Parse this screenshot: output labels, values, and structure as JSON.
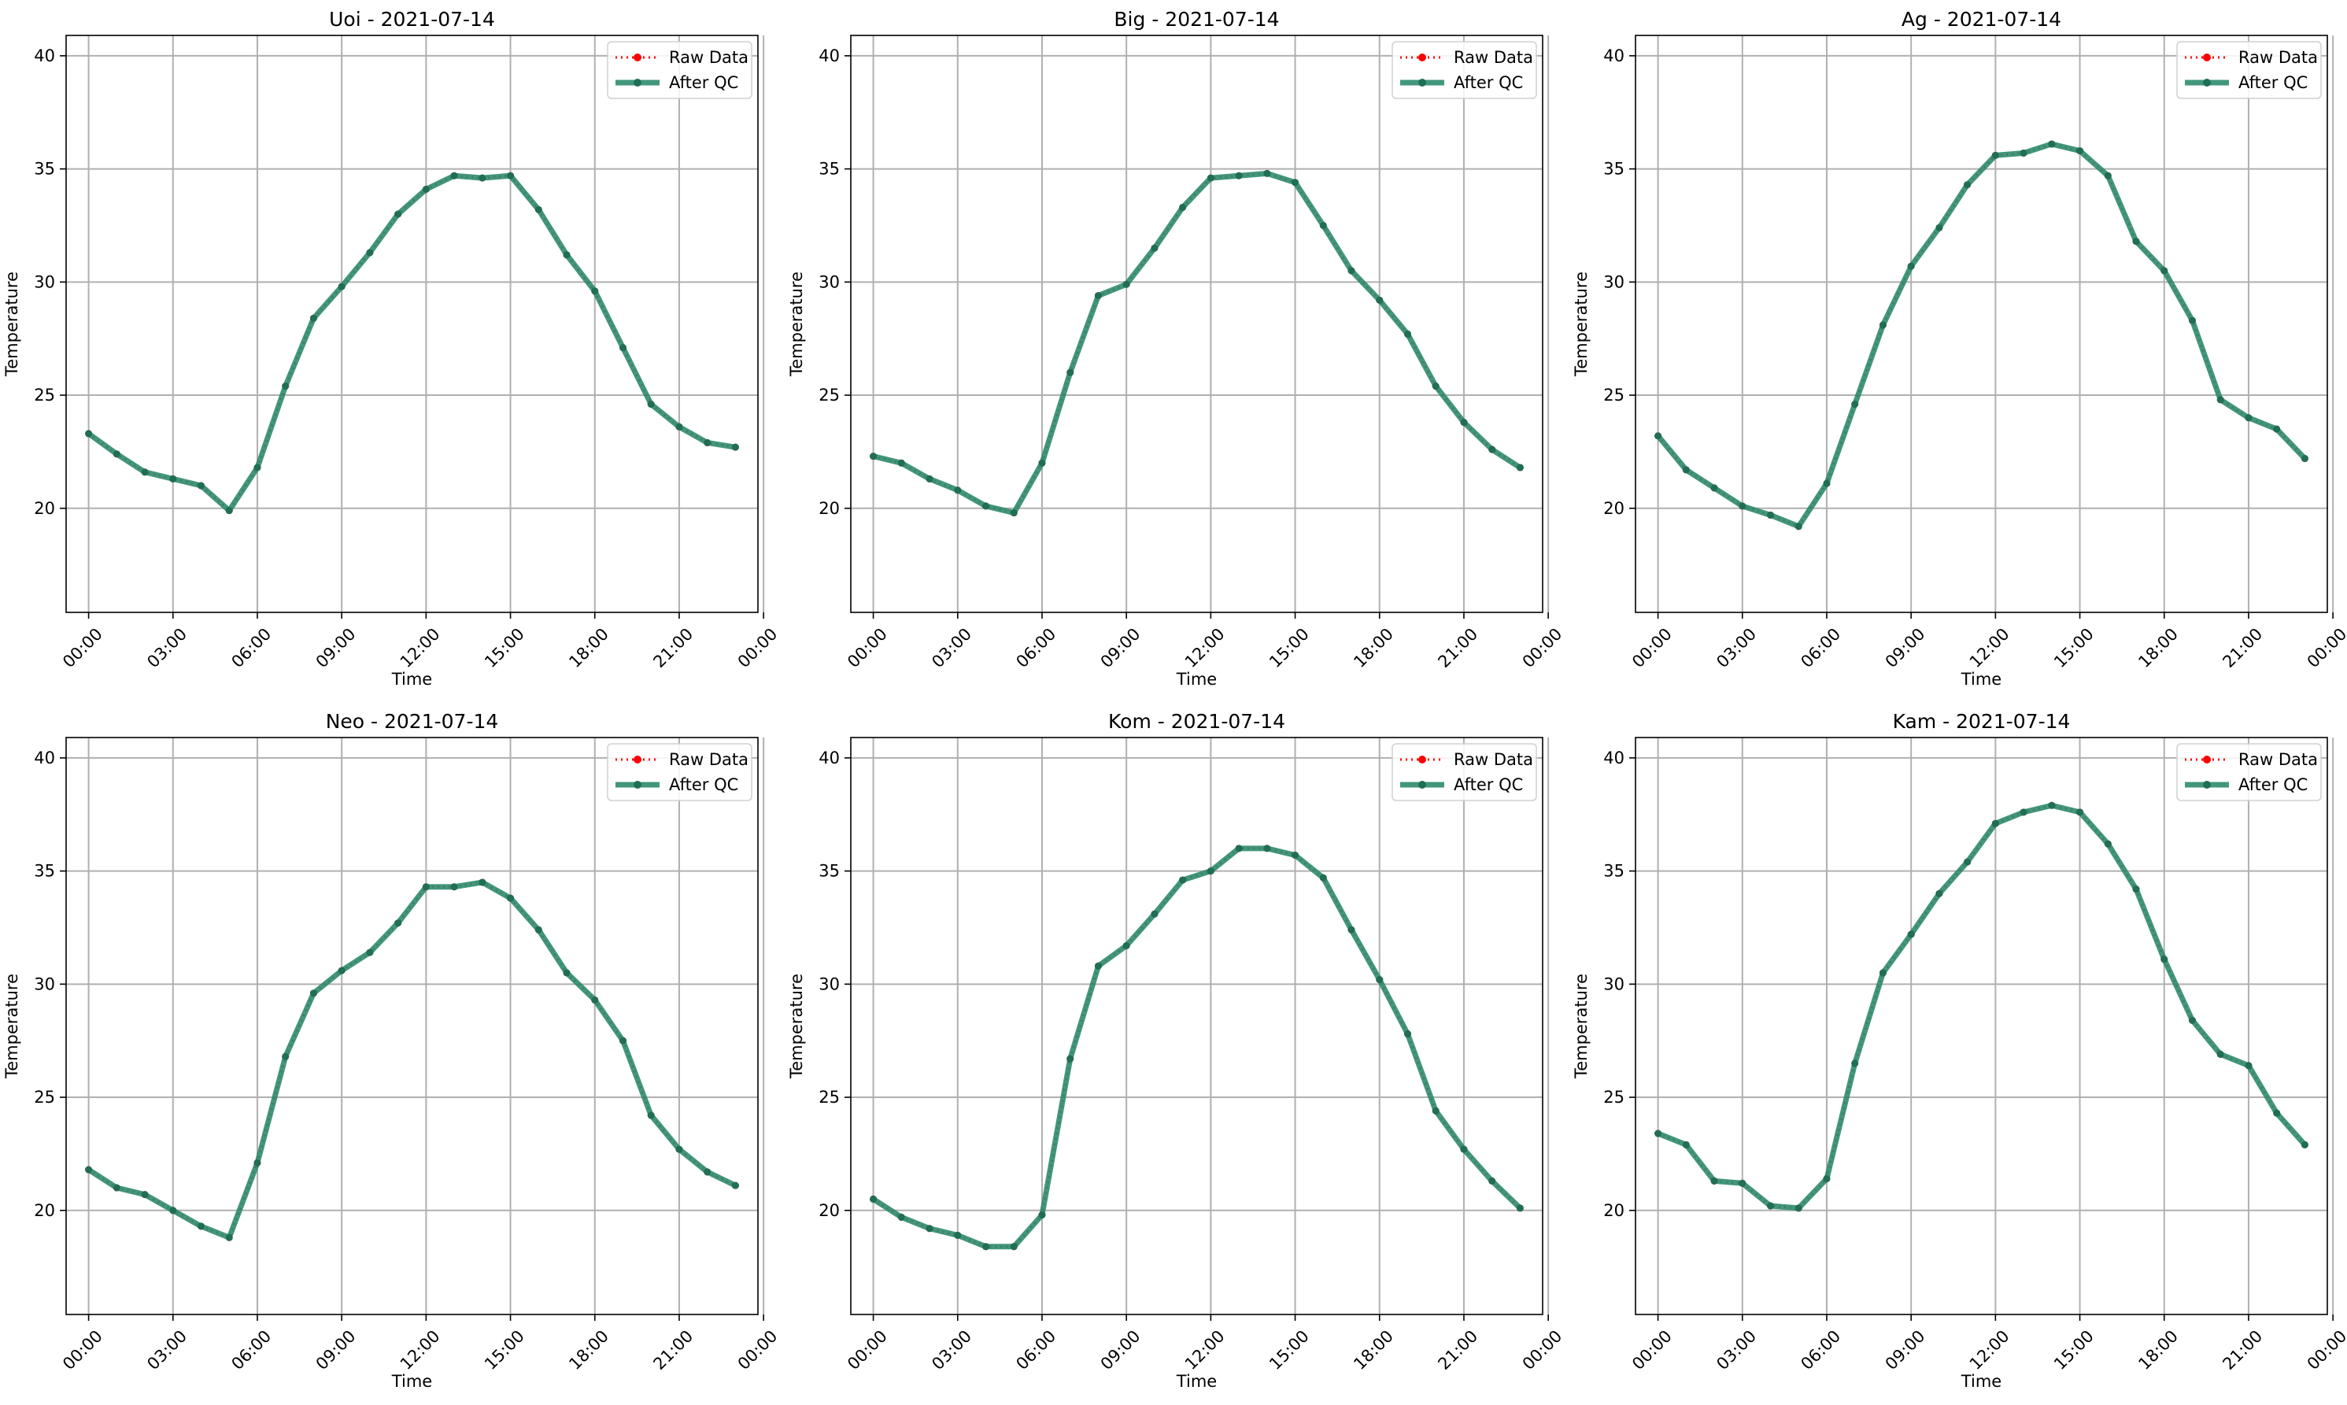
{
  "figure": {
    "legend_raw": "Raw Data",
    "legend_qc": "After QC"
  },
  "colors": {
    "raw": "#ff0000",
    "qc": "#2e8b6e",
    "grid": "#b0b0b0"
  },
  "chart_data": [
    {
      "type": "line",
      "title": "Uoi - 2021-07-14",
      "xlabel": "Time",
      "ylabel": "Temperature",
      "xlim": [
        -0.8,
        23.8
      ],
      "ylim": [
        15.4,
        40.9
      ],
      "xticks": [
        "00:00",
        "03:00",
        "06:00",
        "09:00",
        "12:00",
        "15:00",
        "18:00",
        "21:00",
        "00:00"
      ],
      "yticks": [
        20,
        25,
        30,
        35,
        40
      ],
      "grid": true,
      "legend": "top-right",
      "x": [
        0,
        1,
        2,
        3,
        4,
        5,
        6,
        7,
        8,
        9,
        10,
        11,
        12,
        13,
        14,
        15,
        16,
        17,
        18,
        19,
        20,
        21,
        22,
        23
      ],
      "series": [
        {
          "name": "Raw Data",
          "values": [
            23.3,
            22.4,
            21.6,
            21.3,
            21.0,
            19.9,
            21.8,
            25.4,
            28.4,
            29.8,
            31.3,
            33.0,
            34.1,
            34.7,
            34.6,
            34.7,
            33.2,
            31.2,
            29.6,
            27.1,
            24.6,
            23.6,
            22.9,
            22.7
          ]
        },
        {
          "name": "After QC",
          "values": [
            23.3,
            22.4,
            21.6,
            21.3,
            21.0,
            19.9,
            21.8,
            25.4,
            28.4,
            29.8,
            31.3,
            33.0,
            34.1,
            34.7,
            34.6,
            34.7,
            33.2,
            31.2,
            29.6,
            27.1,
            24.6,
            23.6,
            22.9,
            22.7
          ]
        }
      ]
    },
    {
      "type": "line",
      "title": "Big - 2021-07-14",
      "xlabel": "Time",
      "ylabel": "Temperature",
      "xlim": [
        -0.8,
        23.8
      ],
      "ylim": [
        15.4,
        40.9
      ],
      "xticks": [
        "00:00",
        "03:00",
        "06:00",
        "09:00",
        "12:00",
        "15:00",
        "18:00",
        "21:00",
        "00:00"
      ],
      "yticks": [
        20,
        25,
        30,
        35,
        40
      ],
      "grid": true,
      "legend": "top-right",
      "x": [
        0,
        1,
        2,
        3,
        4,
        5,
        6,
        7,
        8,
        9,
        10,
        11,
        12,
        13,
        14,
        15,
        16,
        17,
        18,
        19,
        20,
        21,
        22,
        23
      ],
      "series": [
        {
          "name": "Raw Data",
          "values": [
            22.3,
            22.0,
            21.3,
            20.8,
            20.1,
            19.8,
            22.0,
            26.0,
            29.4,
            29.9,
            31.5,
            33.3,
            34.6,
            34.7,
            34.8,
            34.4,
            32.5,
            30.5,
            29.2,
            27.7,
            25.4,
            23.8,
            22.6,
            21.8
          ]
        },
        {
          "name": "After QC",
          "values": [
            22.3,
            22.0,
            21.3,
            20.8,
            20.1,
            19.8,
            22.0,
            26.0,
            29.4,
            29.9,
            31.5,
            33.3,
            34.6,
            34.7,
            34.8,
            34.4,
            32.5,
            30.5,
            29.2,
            27.7,
            25.4,
            23.8,
            22.6,
            21.8
          ]
        }
      ]
    },
    {
      "type": "line",
      "title": "Ag - 2021-07-14",
      "xlabel": "Time",
      "ylabel": "Temperature",
      "xlim": [
        -0.8,
        23.8
      ],
      "ylim": [
        15.4,
        40.9
      ],
      "xticks": [
        "00:00",
        "03:00",
        "06:00",
        "09:00",
        "12:00",
        "15:00",
        "18:00",
        "21:00",
        "00:00"
      ],
      "yticks": [
        20,
        25,
        30,
        35,
        40
      ],
      "grid": true,
      "legend": "top-right",
      "x": [
        0,
        1,
        2,
        3,
        4,
        5,
        6,
        7,
        8,
        9,
        10,
        11,
        12,
        13,
        14,
        15,
        16,
        17,
        18,
        19,
        20,
        21,
        22,
        23
      ],
      "series": [
        {
          "name": "Raw Data",
          "values": [
            23.2,
            21.7,
            20.9,
            20.1,
            19.7,
            19.2,
            21.1,
            24.6,
            28.1,
            30.7,
            32.4,
            34.3,
            35.6,
            35.7,
            36.1,
            35.8,
            34.7,
            31.8,
            30.5,
            28.3,
            24.8,
            24.0,
            23.5,
            22.2
          ]
        },
        {
          "name": "After QC",
          "values": [
            23.2,
            21.7,
            20.9,
            20.1,
            19.7,
            19.2,
            21.1,
            24.6,
            28.1,
            30.7,
            32.4,
            34.3,
            35.6,
            35.7,
            36.1,
            35.8,
            34.7,
            31.8,
            30.5,
            28.3,
            24.8,
            24.0,
            23.5,
            22.2
          ]
        }
      ]
    },
    {
      "type": "line",
      "title": "Neo - 2021-07-14",
      "xlabel": "Time",
      "ylabel": "Temperature",
      "xlim": [
        -0.8,
        23.8
      ],
      "ylim": [
        15.4,
        40.9
      ],
      "xticks": [
        "00:00",
        "03:00",
        "06:00",
        "09:00",
        "12:00",
        "15:00",
        "18:00",
        "21:00",
        "00:00"
      ],
      "yticks": [
        20,
        25,
        30,
        35,
        40
      ],
      "grid": true,
      "legend": "top-right",
      "x": [
        0,
        1,
        2,
        3,
        4,
        5,
        6,
        7,
        8,
        9,
        10,
        11,
        12,
        13,
        14,
        15,
        16,
        17,
        18,
        19,
        20,
        21,
        22,
        23
      ],
      "series": [
        {
          "name": "Raw Data",
          "values": [
            21.8,
            21.0,
            20.7,
            20.0,
            19.3,
            18.8,
            22.1,
            26.8,
            29.6,
            30.6,
            31.4,
            32.7,
            34.3,
            34.3,
            34.5,
            33.8,
            32.4,
            30.5,
            29.3,
            27.5,
            24.2,
            22.7,
            21.7,
            21.1
          ]
        },
        {
          "name": "After QC",
          "values": [
            21.8,
            21.0,
            20.7,
            20.0,
            19.3,
            18.8,
            22.1,
            26.8,
            29.6,
            30.6,
            31.4,
            32.7,
            34.3,
            34.3,
            34.5,
            33.8,
            32.4,
            30.5,
            29.3,
            27.5,
            24.2,
            22.7,
            21.7,
            21.1
          ]
        }
      ]
    },
    {
      "type": "line",
      "title": "Kom - 2021-07-14",
      "xlabel": "Time",
      "ylabel": "Temperature",
      "xlim": [
        -0.8,
        23.8
      ],
      "ylim": [
        15.4,
        40.9
      ],
      "xticks": [
        "00:00",
        "03:00",
        "06:00",
        "09:00",
        "12:00",
        "15:00",
        "18:00",
        "21:00",
        "00:00"
      ],
      "yticks": [
        20,
        25,
        30,
        35,
        40
      ],
      "grid": true,
      "legend": "top-right",
      "x": [
        0,
        1,
        2,
        3,
        4,
        5,
        6,
        7,
        8,
        9,
        10,
        11,
        12,
        13,
        14,
        15,
        16,
        17,
        18,
        19,
        20,
        21,
        22,
        23
      ],
      "series": [
        {
          "name": "Raw Data",
          "values": [
            20.5,
            19.7,
            19.2,
            18.9,
            18.4,
            18.4,
            19.8,
            26.7,
            30.8,
            31.7,
            33.1,
            34.6,
            35.0,
            36.0,
            36.0,
            35.7,
            34.7,
            32.4,
            30.2,
            27.8,
            24.4,
            22.7,
            21.3,
            20.1
          ]
        },
        {
          "name": "After QC",
          "values": [
            20.5,
            19.7,
            19.2,
            18.9,
            18.4,
            18.4,
            19.8,
            26.7,
            30.8,
            31.7,
            33.1,
            34.6,
            35.0,
            36.0,
            36.0,
            35.7,
            34.7,
            32.4,
            30.2,
            27.8,
            24.4,
            22.7,
            21.3,
            20.1
          ]
        }
      ]
    },
    {
      "type": "line",
      "title": "Kam - 2021-07-14",
      "xlabel": "Time",
      "ylabel": "Temperature",
      "xlim": [
        -0.8,
        23.8
      ],
      "ylim": [
        15.4,
        40.9
      ],
      "xticks": [
        "00:00",
        "03:00",
        "06:00",
        "09:00",
        "12:00",
        "15:00",
        "18:00",
        "21:00",
        "00:00"
      ],
      "yticks": [
        20,
        25,
        30,
        35,
        40
      ],
      "grid": true,
      "legend": "top-right",
      "x": [
        0,
        1,
        2,
        3,
        4,
        5,
        6,
        7,
        8,
        9,
        10,
        11,
        12,
        13,
        14,
        15,
        16,
        17,
        18,
        19,
        20,
        21,
        22,
        23
      ],
      "series": [
        {
          "name": "Raw Data",
          "values": [
            23.4,
            22.9,
            21.3,
            21.2,
            20.2,
            20.1,
            21.4,
            26.5,
            30.5,
            32.2,
            34.0,
            35.4,
            37.1,
            37.6,
            37.9,
            37.6,
            36.2,
            34.2,
            31.1,
            28.4,
            26.9,
            26.4,
            24.3,
            22.9
          ]
        },
        {
          "name": "After QC",
          "values": [
            23.4,
            22.9,
            21.3,
            21.2,
            20.2,
            20.1,
            21.4,
            26.5,
            30.5,
            32.2,
            34.0,
            35.4,
            37.1,
            37.6,
            37.9,
            37.6,
            36.2,
            34.2,
            31.1,
            28.4,
            26.9,
            26.4,
            24.3,
            22.9
          ]
        }
      ]
    }
  ]
}
